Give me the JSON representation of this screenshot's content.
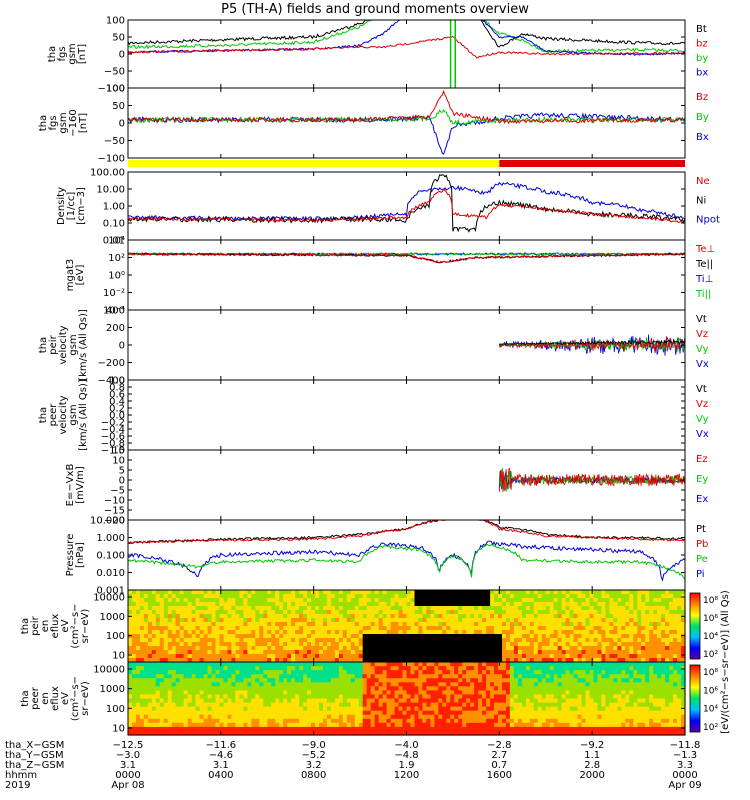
{
  "title": "P5 (TH-A) fields and ground moments overview",
  "colors": {
    "black": "#000000",
    "red": "#e00000",
    "green": "#00c800",
    "blue": "#0000e0",
    "yellow": "#ffff00"
  },
  "panels": [
    {
      "id": "p1",
      "ylabel": [
        "tha",
        "fgs",
        "gsm",
        "[nT]"
      ],
      "ticks": [
        "100",
        "50",
        "0",
        "−50",
        "−100"
      ],
      "ymin": -100,
      "ymax": 100,
      "legend": [
        {
          "text": "Bt",
          "color": "black"
        },
        {
          "text": "bz",
          "color": "red"
        },
        {
          "text": "by",
          "color": "green"
        },
        {
          "text": "bx",
          "color": "blue"
        }
      ]
    },
    {
      "id": "p2",
      "ylabel": [
        "tha",
        "fgs",
        "gsm",
        "−160",
        "[nT]"
      ],
      "ticks": [
        "100",
        "50",
        "0",
        "−50",
        "−100"
      ],
      "ymin": -120,
      "ymax": 100,
      "legend": [
        {
          "text": "Bz",
          "color": "red"
        },
        {
          "text": "By",
          "color": "green"
        },
        {
          "text": "Bx",
          "color": "blue"
        }
      ]
    },
    {
      "id": "p3",
      "ylabel": [
        "Density",
        "[1/cc]",
        "[cm−3]"
      ],
      "ticks": [
        "100.00",
        "10.00",
        "1.00",
        "0.10",
        "0.01"
      ],
      "ymin": 0.01,
      "ymax": 300,
      "legend": [
        {
          "text": "Ne",
          "color": "red"
        },
        {
          "text": "Ni",
          "color": "black"
        },
        {
          "text": "Npot",
          "color": "blue"
        }
      ]
    },
    {
      "id": "p4",
      "ylabel": [
        "mgat3",
        "[eV]"
      ],
      "ticks": [
        "10⁴",
        "10²",
        "10⁰",
        "10⁻²",
        "10⁻⁴"
      ],
      "ymin": -5,
      "ymax": 5,
      "legend": [
        {
          "text": "Te⊥",
          "color": "red"
        },
        {
          "text": "Te||",
          "color": "black"
        },
        {
          "text": "Ti⊥",
          "color": "blue"
        },
        {
          "text": "Ti||",
          "color": "green"
        }
      ]
    },
    {
      "id": "p5",
      "ylabel": [
        "tha",
        "peir",
        "velocity",
        "gsm",
        "[km/s (All Qs)]"
      ],
      "ticks": [
        "400",
        "200",
        "0",
        "−200",
        "−400"
      ],
      "ymin": -400,
      "ymax": 400,
      "legend": [
        {
          "text": "Vt",
          "color": "black"
        },
        {
          "text": "Vz",
          "color": "red"
        },
        {
          "text": "Vy",
          "color": "green"
        },
        {
          "text": "Vx",
          "color": "blue"
        }
      ]
    },
    {
      "id": "p6",
      "ylabel": [
        "tha",
        "peer",
        "velocity",
        "gsm",
        "[km/s (All Qs)]"
      ],
      "ticks": [
        "1.0",
        "0.8",
        "0.6",
        "0.4",
        "0.2",
        "0.0",
        "−0.2",
        "−0.4",
        "−0.6",
        "−0.8",
        "−1.0"
      ],
      "ymin": -1,
      "ymax": 1,
      "legend": [
        {
          "text": "Vt",
          "color": "black"
        },
        {
          "text": "Vz",
          "color": "red"
        },
        {
          "text": "Vy",
          "color": "green"
        },
        {
          "text": "Vx",
          "color": "blue"
        }
      ]
    },
    {
      "id": "p7",
      "ylabel": [
        "E=−VxB",
        "[mV/m]"
      ],
      "ticks": [
        "15",
        "10",
        "5",
        "0",
        "−5",
        "−10",
        "−15",
        "−20"
      ],
      "ymin": -20,
      "ymax": 15,
      "legend": [
        {
          "text": "Ez",
          "color": "red"
        },
        {
          "text": "Ey",
          "color": "green"
        },
        {
          "text": "Ex",
          "color": "blue"
        }
      ]
    },
    {
      "id": "p8",
      "ylabel": [
        "Pressure",
        "[nPa]"
      ],
      "ticks": [
        "10.000",
        "1.000",
        "0.100",
        "0.010",
        "0.001"
      ],
      "ymin": 0.001,
      "ymax": 10,
      "legend": [
        {
          "text": "Pt",
          "color": "black"
        },
        {
          "text": "Pb",
          "color": "red"
        },
        {
          "text": "Pe",
          "color": "green"
        },
        {
          "text": "Pi",
          "color": "blue"
        }
      ]
    },
    {
      "id": "p9",
      "ylabel": [
        "tha",
        "peir",
        "en",
        "eflux",
        "eV",
        "(cm²−s−",
        "sr−eV)"
      ],
      "ticks": [
        "10000",
        "1000",
        "100",
        "10"
      ],
      "cbar": [
        "10⁸",
        "10⁶",
        "10⁴",
        "10²"
      ]
    },
    {
      "id": "p10",
      "ylabel": [
        "tha",
        "peer",
        "en",
        "eflux",
        "eV",
        "(cm²−s−",
        "sr−eV)"
      ],
      "ticks": [
        "10000",
        "1000",
        "100",
        "10"
      ],
      "cbar": [
        "10⁸",
        "10⁶",
        "10⁴",
        "10²"
      ]
    }
  ],
  "colorbar_label": "[eV/(cm²−s−sr−eV)] (All Qs)",
  "xaxis": {
    "row_labels": [
      "tha_X−GSM",
      "tha_Y−GSM",
      "tha_Z−GSM",
      "hhmm",
      "2019"
    ],
    "columns": [
      {
        "x": "−12.5",
        "y": "−3.0",
        "z": "3.1",
        "hhmm": "0000",
        "date": "Apr 08"
      },
      {
        "x": "−11.6",
        "y": "−4.6",
        "z": "3.1",
        "hhmm": "0400",
        "date": ""
      },
      {
        "x": "−9.0",
        "y": "−5.2",
        "z": "3.2",
        "hhmm": "0800",
        "date": ""
      },
      {
        "x": "−4.0",
        "y": "−4.8",
        "z": "1.9",
        "hhmm": "1200",
        "date": ""
      },
      {
        "x": "−2.8",
        "y": "2.7",
        "z": "0.7",
        "hhmm": "1600",
        "date": ""
      },
      {
        "x": "−9.2",
        "y": "1.1",
        "z": "2.8",
        "hhmm": "2000",
        "date": ""
      },
      {
        "x": "−11.8",
        "y": "−1.3",
        "z": "3.3",
        "hhmm": "0000",
        "date": "Apr 09"
      }
    ]
  },
  "chart_data": {
    "type": "line",
    "title": "P5 (TH-A) fields and ground moments overview",
    "x_hhmm": [
      "0000",
      "0400",
      "0800",
      "1200",
      "1600",
      "2000",
      "0000"
    ],
    "series": [
      {
        "name": "Bt",
        "panel": "p1",
        "x_hours": [
          0,
          2,
          4,
          6,
          8,
          9,
          10,
          11,
          12,
          13,
          14,
          15,
          16,
          17,
          18,
          20,
          22,
          24
        ],
        "values": [
          32,
          38,
          42,
          45,
          50,
          60,
          90,
          100,
          100,
          100,
          100,
          100,
          100,
          60,
          45,
          38,
          33,
          30
        ]
      },
      {
        "name": "bz",
        "panel": "p1",
        "x_hours": [
          0,
          2,
          4,
          6,
          8,
          9,
          10,
          11,
          12,
          13,
          14,
          15,
          16,
          17,
          18,
          20,
          22,
          24
        ],
        "values": [
          5,
          8,
          10,
          12,
          15,
          18,
          25,
          60,
          100,
          100,
          100,
          100,
          20,
          5,
          0,
          0,
          2,
          3
        ]
      },
      {
        "name": "by",
        "panel": "p1",
        "x_hours": [
          0,
          2,
          4,
          6,
          8,
          9,
          10,
          11,
          12,
          13,
          14,
          15,
          16,
          17,
          18,
          20,
          22,
          24
        ],
        "values": [
          18,
          22,
          25,
          28,
          35,
          50,
          80,
          100,
          100,
          100,
          100,
          100,
          30,
          10,
          8,
          10,
          12,
          10
        ]
      },
      {
        "name": "Bx",
        "panel": "p2",
        "x_hours": [
          0,
          4,
          8,
          10,
          12,
          13,
          13.5,
          14,
          15,
          16,
          18,
          20,
          22,
          24
        ],
        "values": [
          0,
          0,
          2,
          5,
          10,
          30,
          -120,
          -100,
          -20,
          10,
          15,
          10,
          5,
          0
        ]
      },
      {
        "name": "Ni",
        "panel": "p3",
        "x_hours": [
          0,
          4,
          8,
          10,
          12,
          13,
          14,
          15,
          16,
          18,
          20,
          22,
          24
        ],
        "values": [
          0.3,
          0.3,
          0.3,
          0.25,
          0.2,
          2,
          200,
          0.2,
          3,
          1,
          0.5,
          0.4,
          0.2
        ]
      },
      {
        "name": "Npot",
        "panel": "p3",
        "x_hours": [
          0,
          4,
          8,
          10,
          12,
          13,
          14,
          15,
          16,
          18,
          20,
          22,
          24
        ],
        "values": [
          0.3,
          0.3,
          0.3,
          0.3,
          0.5,
          20,
          30,
          20,
          30,
          10,
          3,
          1,
          0.2
        ]
      },
      {
        "name": "Pt",
        "panel": "p8",
        "x_hours": [
          0,
          4,
          8,
          10,
          12,
          13,
          14,
          15,
          16,
          18,
          20,
          22,
          24
        ],
        "values": [
          0.5,
          0.8,
          1,
          1.5,
          3,
          8,
          10,
          10,
          4,
          1.5,
          1,
          1,
          0.8
        ]
      },
      {
        "name": "Pe",
        "panel": "p8",
        "x_hours": [
          0,
          4,
          8,
          10,
          12,
          13,
          14,
          15,
          16,
          18,
          20,
          22,
          24
        ],
        "values": [
          0.05,
          0.02,
          0.05,
          0.08,
          0.3,
          0.15,
          0.02,
          0.1,
          0.4,
          0.05,
          0.04,
          0.04,
          0.004
        ]
      }
    ],
    "mode_bar": {
      "yellow_until_hhmm": "1600",
      "red_after_hhmm": "1600"
    }
  }
}
